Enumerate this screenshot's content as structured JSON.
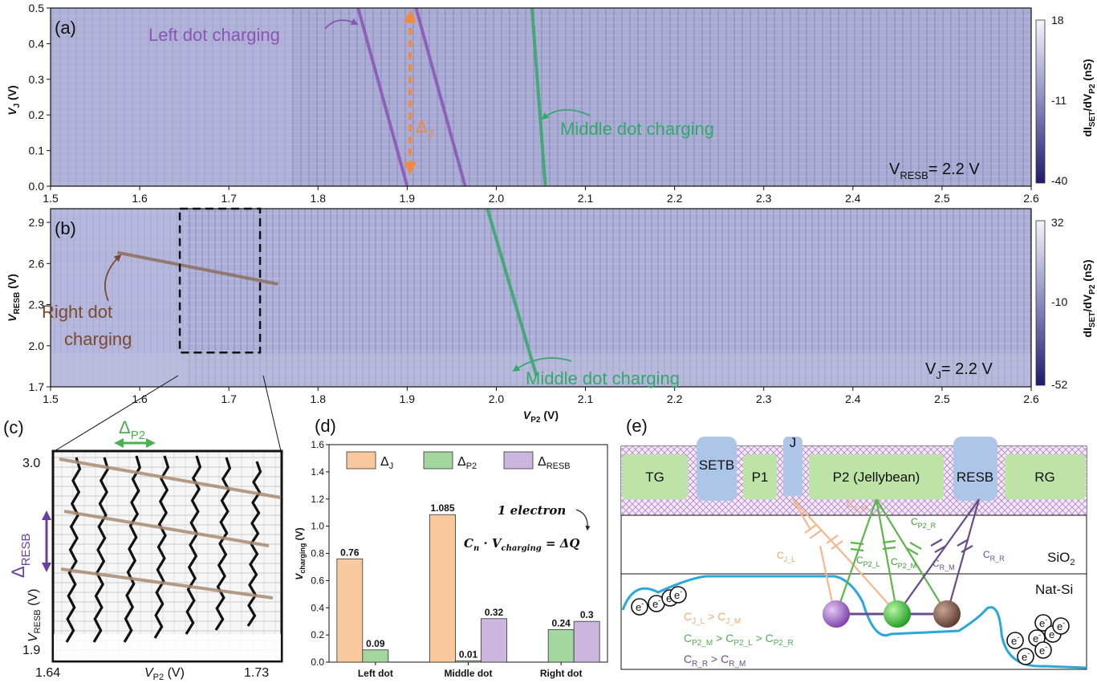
{
  "chart_data": [
    {
      "panel": "(a)",
      "type": "heatmap",
      "xlabel": "V_P2 (V)",
      "ylabel": "V_J (V)",
      "xlim": [
        1.5,
        2.6
      ],
      "ylim": [
        0.0,
        0.5
      ],
      "xticks": [
        "1.5",
        "1.6",
        "1.7",
        "1.8",
        "1.9",
        "2.0",
        "2.1",
        "2.2",
        "2.3",
        "2.4",
        "2.5",
        "2.6"
      ],
      "yticks": [
        "0.0",
        "0.1",
        "0.2",
        "0.3",
        "0.4",
        "0.5"
      ],
      "colorbar": {
        "label": "dI_SET/dV_P2 (nS)",
        "ticks": [
          "18",
          "-11",
          "-40"
        ],
        "max": 18,
        "min": -40
      },
      "fixed_label": "V_RESB= 2.2 V",
      "annotations": {
        "left_dot": "Left dot charging",
        "middle_dot": "Middle dot charging",
        "delta": "Δ_J"
      },
      "lines": [
        {
          "name": "left-dot-line-1",
          "x": [
            1.845,
            1.9
          ],
          "y": [
            0.5,
            0.0
          ]
        },
        {
          "name": "left-dot-line-2",
          "x": [
            1.91,
            1.965
          ],
          "y": [
            0.5,
            0.0
          ]
        },
        {
          "name": "middle-dot-line",
          "x": [
            2.04,
            2.055
          ],
          "y": [
            0.5,
            0.0
          ]
        }
      ]
    },
    {
      "panel": "(b)",
      "type": "heatmap",
      "xlabel": "V_P2 (V)",
      "ylabel": "V_RESB (V)",
      "xlim": [
        1.5,
        2.6
      ],
      "ylim": [
        1.7,
        3.0
      ],
      "xticks": [
        "1.5",
        "1.6",
        "1.7",
        "1.8",
        "1.9",
        "2.0",
        "2.1",
        "2.2",
        "2.3",
        "2.4",
        "2.5",
        "2.6"
      ],
      "yticks": [
        "1.7",
        "2.0",
        "2.3",
        "2.6",
        "2.9"
      ],
      "colorbar": {
        "label": "dI_SET/dV_P2 (nS)",
        "ticks": [
          "32",
          "-10",
          "-52"
        ],
        "max": 32,
        "min": -52
      },
      "fixed_label": "V_J= 2.2 V",
      "annotations": {
        "right_dot_1": "Right dot",
        "right_dot_2": "charging",
        "middle_dot": "Middle dot charging"
      },
      "lines": [
        {
          "name": "right-dot-line",
          "x": [
            1.575,
            1.755
          ],
          "y": [
            2.68,
            2.45
          ]
        },
        {
          "name": "middle-dot-line",
          "x": [
            1.99,
            2.045
          ],
          "y": [
            3.0,
            1.78
          ]
        }
      ],
      "zoom_box": {
        "x": [
          1.645,
          1.735
        ],
        "y": [
          1.95,
          3.0
        ]
      }
    },
    {
      "panel": "(c)",
      "type": "heatmap",
      "xlabel": "V_P2 (V)",
      "ylabel": "V_RESB (V)",
      "xticks": [
        "1.64",
        "1.73"
      ],
      "yticks": [
        "3.0",
        "1.9"
      ],
      "annotations": {
        "delta_p2": "Δ_P2",
        "delta_resb": "Δ_RESB"
      }
    },
    {
      "panel": "(d)",
      "type": "bar",
      "categories": [
        "Left dot",
        "Middle dot",
        "Right dot"
      ],
      "series": [
        {
          "name": "Δ_J",
          "values": [
            0.76,
            1.085,
            null
          ],
          "color": "#f9c99d"
        },
        {
          "name": "Δ_P2",
          "values": [
            0.09,
            0.01,
            0.24
          ],
          "color": "#a4d6a0"
        },
        {
          "name": "Δ_RESB",
          "values": [
            null,
            0.32,
            0.3
          ],
          "color": "#cbb6dd"
        }
      ],
      "labels": [
        [
          "0.76",
          "0.09",
          ""
        ],
        [
          "1.085",
          "0.01",
          "0.32"
        ],
        [
          "",
          "0.24",
          "0.3"
        ]
      ],
      "ylabel": "V_charging (V)",
      "ylim": [
        0,
        1.6
      ],
      "yticks": [
        "0.0",
        "0.2",
        "0.4",
        "0.6",
        "0.8",
        "1.0",
        "1.2",
        "1.4",
        "1.6"
      ],
      "annotations": {
        "electron": "1 electron",
        "formula": "C_n · V_charging = ΔQ"
      }
    }
  ],
  "labels": {
    "panel_a": "(a)",
    "panel_b": "(b)",
    "panel_c": "(c)",
    "panel_d": "(d)",
    "panel_e": "(e)",
    "left_dot_charging": "Left dot charging",
    "middle_dot_charging": "Middle dot charging",
    "middle_dot_charging_b": "Middle dot charging",
    "right_dot": "Right dot",
    "charging": "charging",
    "vresb_fixed_main": "V",
    "vresb_fixed_sub": "RESB",
    "vresb_fixed_val": "= 2.2 V",
    "vj_fixed_main": "V",
    "vj_fixed_sub": "J",
    "vj_fixed_val": "= 2.2 V",
    "delta": "Δ",
    "delta_j_sub": "J",
    "delta_p2_sub": "P2",
    "delta_resb_sub": "RESB",
    "xlabel_main": "V",
    "xlabel_sub": "P2",
    "xlabel_unit": " (V)",
    "ylabel_a_sub": "J",
    "ylabel_b_sub": "RESB",
    "ylabel_unit": " (V)",
    "cbar_label_pre": "dI",
    "cbar_label_sub1": "SET",
    "cbar_label_mid": "/dV",
    "cbar_label_sub2": "P2",
    "cbar_label_unit": " (nS)",
    "vcharging_main": "V",
    "vcharging_sub": "charging",
    "vcharging_unit": " (V)",
    "one_electron": "1 electron",
    "formula_c": "C",
    "formula_n": "n",
    "formula_dot": " · V",
    "formula_charging": "charging",
    "formula_eq": " = ΔQ"
  },
  "schematic": {
    "gates": [
      "TG",
      "SETB",
      "P1",
      "J",
      "P2 (Jellybean)",
      "RESB",
      "RG"
    ],
    "layers": [
      "SiO",
      "2",
      "Nat-Si"
    ],
    "electron": "e",
    "electron_sup": "-",
    "caps": {
      "cj_l": "C",
      "cj_l_sub": "J_L",
      "cj_m": "C",
      "cj_m_sub": "J_M",
      "cp2_l": "C",
      "cp2_l_sub": "P2_L",
      "cp2_m": "C",
      "cp2_m_sub": "P2_M",
      "cp2_r": "C",
      "cp2_r_sub": "P2_R",
      "cr_m": "C",
      "cr_m_sub": "R_M",
      "cr_r": "C",
      "cr_r_sub": "R_R"
    },
    "inequalities": {
      "line1": [
        "C",
        "J_L",
        " > C",
        "J_M"
      ],
      "line2": [
        "C",
        "P2_M",
        " > C",
        "P2_L",
        " > C",
        "P2_R"
      ],
      "line3": [
        "C",
        "R_R",
        " > C",
        "R_M"
      ]
    },
    "colors": {
      "orange": "#f4a873",
      "green": "#4caf50",
      "purple": "#6b4c8a",
      "brown": "#7a5a48",
      "gate_green": "#bde3a6",
      "gate_blue": "#adc5e6",
      "si_line": "#2aa8dc"
    }
  }
}
